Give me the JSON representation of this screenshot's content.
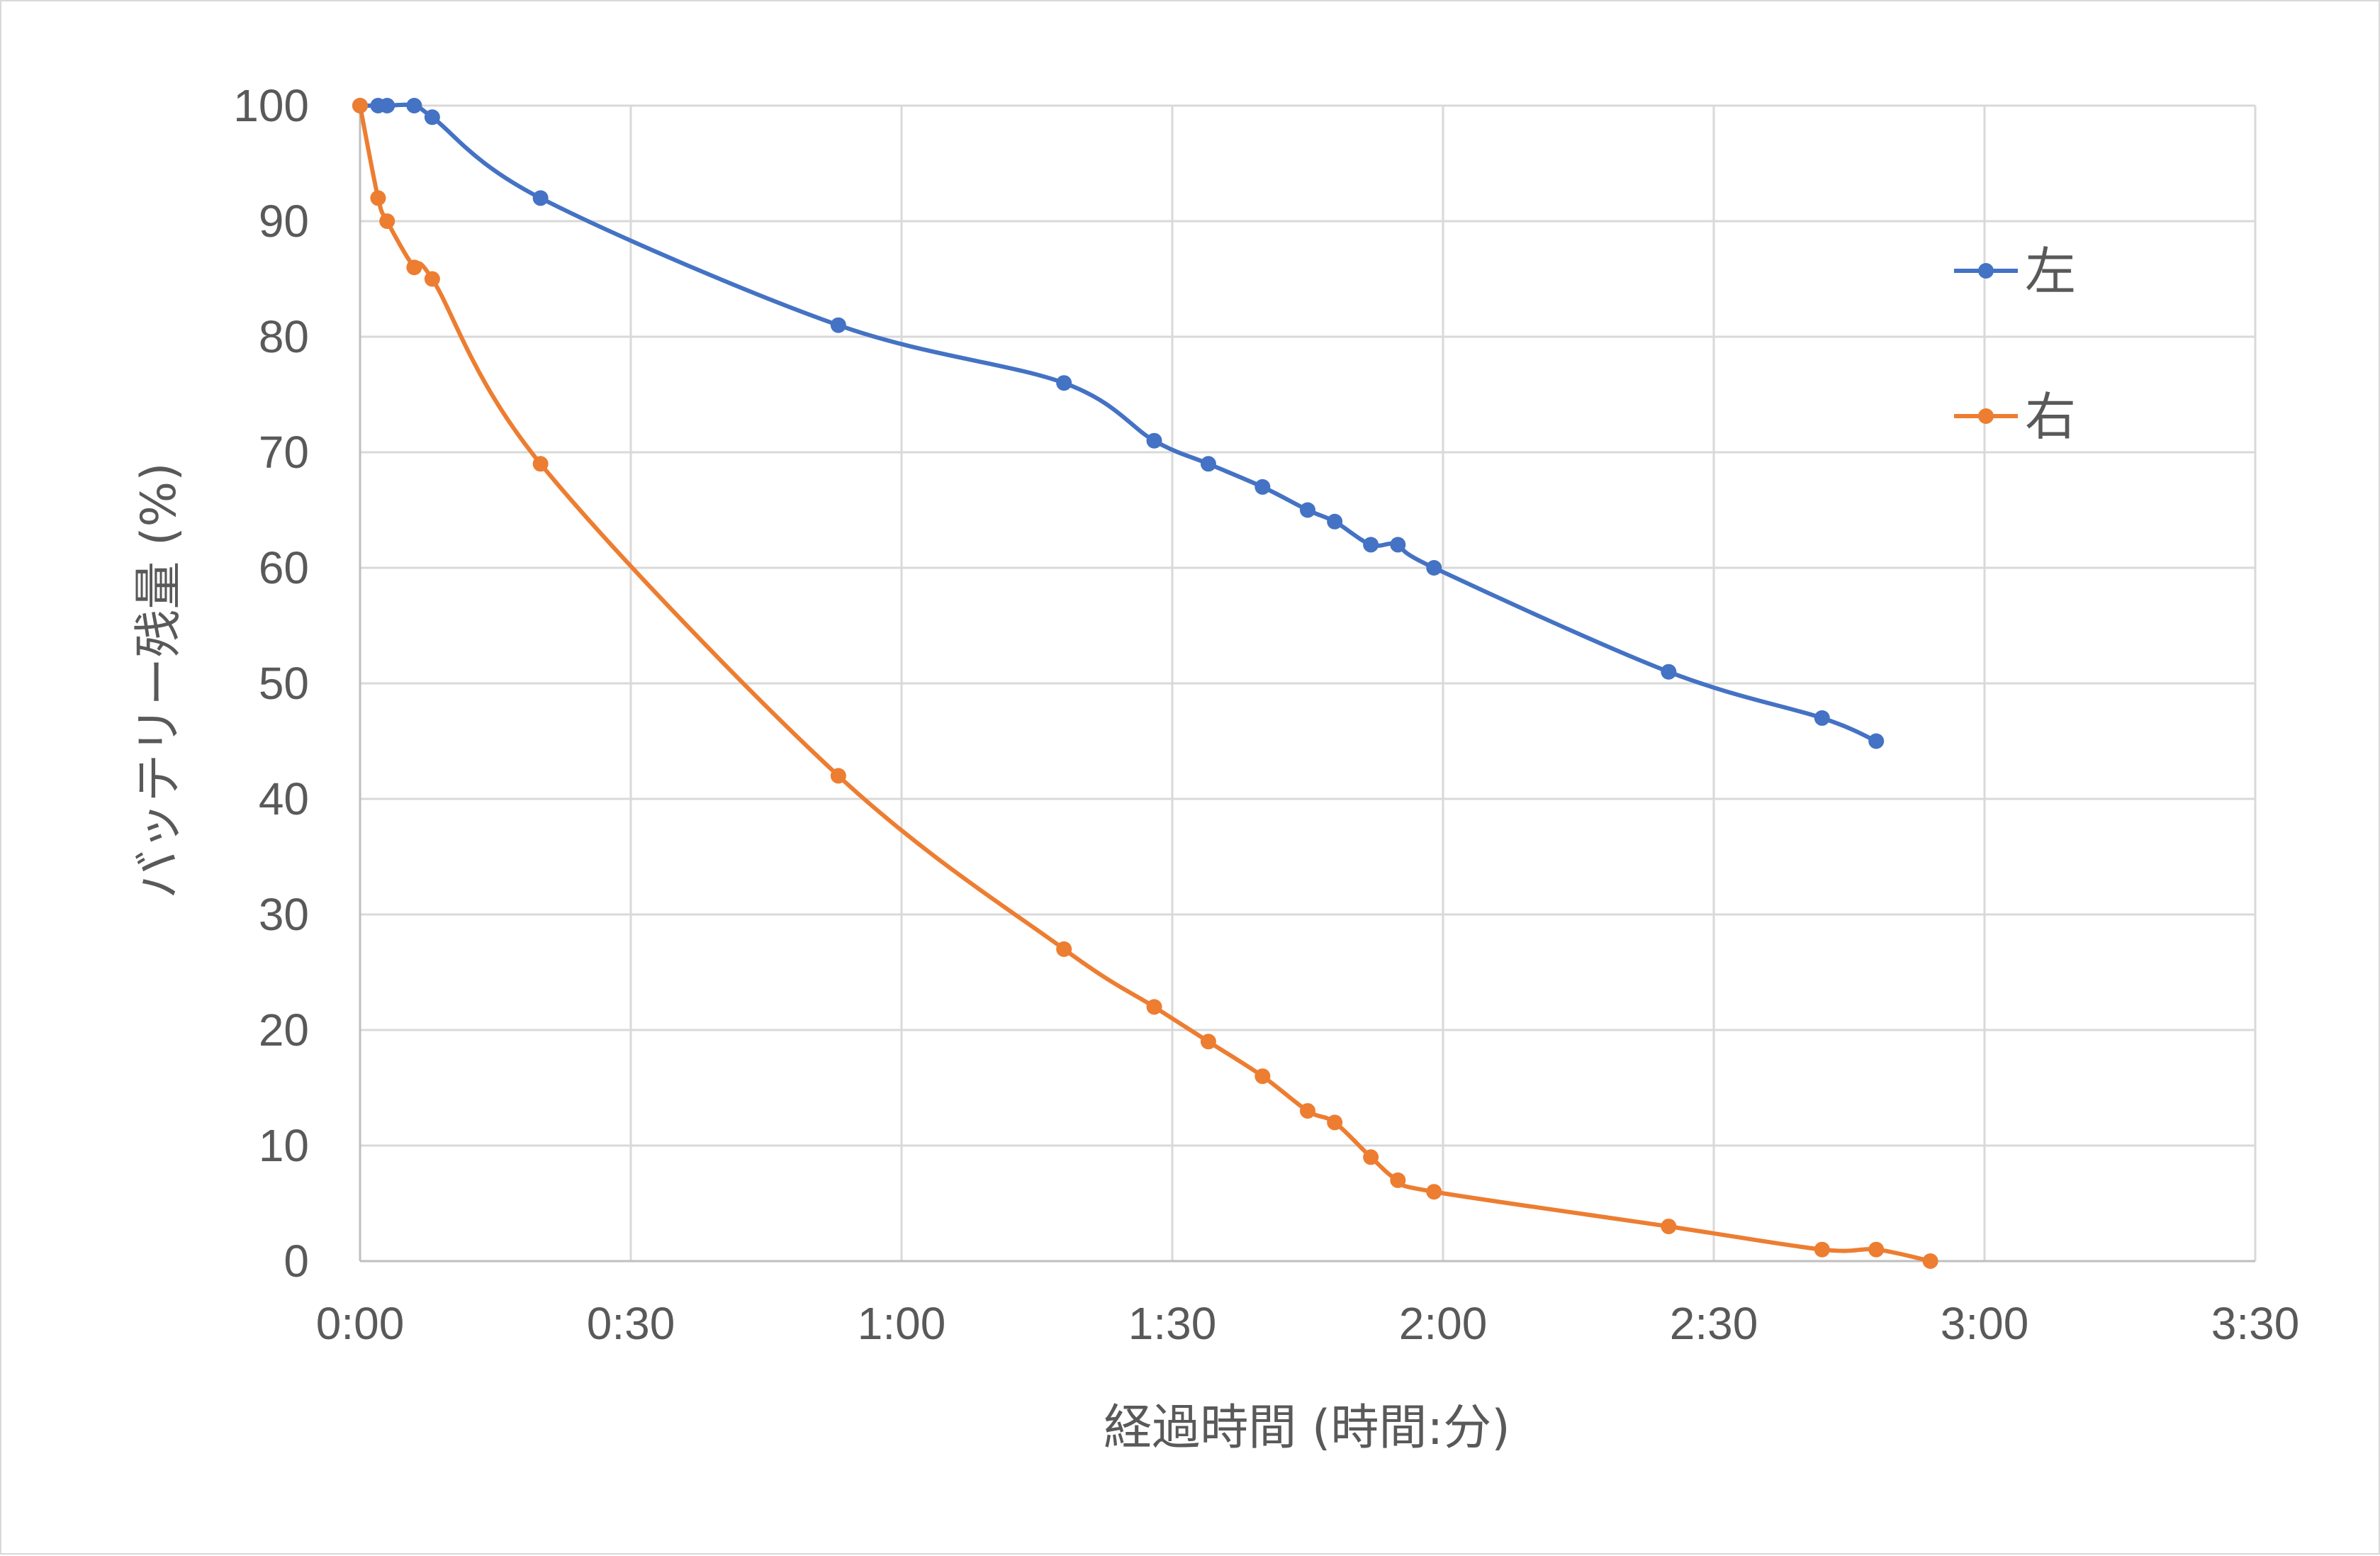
{
  "chart_data": {
    "type": "line",
    "title": "",
    "xlabel": "経過時間 (時間:分)",
    "ylabel": "バッテリー残量 (%)",
    "x_unit": "minutes",
    "xlim": [
      0,
      210
    ],
    "ylim": [
      0,
      100
    ],
    "x_ticks": [
      0,
      30,
      60,
      90,
      120,
      150,
      180,
      210
    ],
    "x_tick_labels": [
      "0:00",
      "0:30",
      "1:00",
      "1:30",
      "2:00",
      "2:30",
      "3:00",
      "3:30"
    ],
    "y_ticks": [
      0,
      10,
      20,
      30,
      40,
      50,
      60,
      70,
      80,
      90,
      100
    ],
    "y_tick_labels": [
      "0",
      "10",
      "20",
      "30",
      "40",
      "50",
      "60",
      "70",
      "80",
      "90",
      "100"
    ],
    "grid": true,
    "legend_position": "right",
    "series": [
      {
        "name": "左",
        "color": "#4472C4",
        "x": [
          0,
          2,
          3,
          6,
          8,
          20,
          53,
          78,
          88,
          94,
          100,
          105,
          108,
          112,
          115,
          119,
          145,
          162,
          168
        ],
        "y": [
          100,
          100,
          100,
          100,
          99,
          92,
          81,
          76,
          71,
          69,
          67,
          65,
          64,
          62,
          62,
          60,
          51,
          47,
          45
        ]
      },
      {
        "name": "右",
        "color": "#ED7D31",
        "x": [
          0,
          2,
          3,
          6,
          8,
          20,
          53,
          78,
          88,
          94,
          100,
          105,
          108,
          112,
          115,
          119,
          145,
          162,
          168,
          174
        ],
        "y": [
          100,
          92,
          90,
          86,
          85,
          69,
          42,
          27,
          22,
          19,
          16,
          13,
          12,
          9,
          7,
          6,
          3,
          1,
          1,
          0
        ]
      }
    ]
  }
}
